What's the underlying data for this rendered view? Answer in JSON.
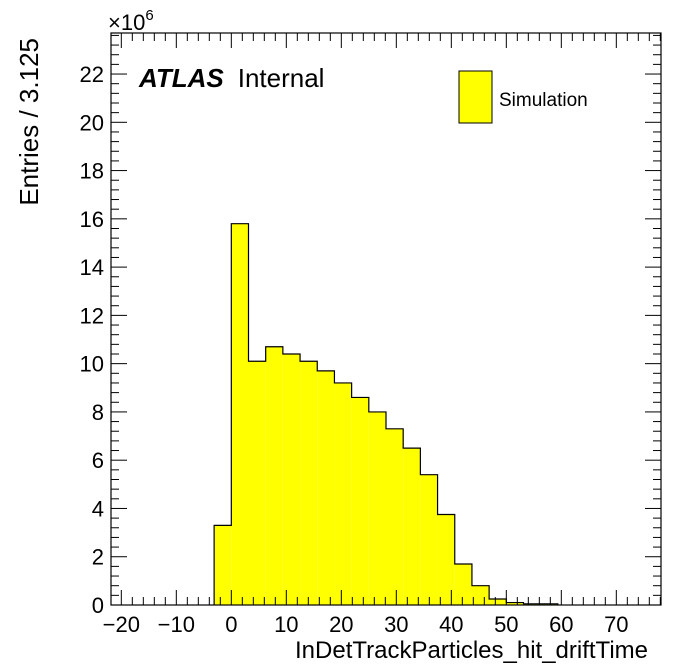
{
  "chart_data": {
    "type": "bar",
    "xlabel": "InDetTrackParticles_hit_driftTime",
    "ylabel": "Entries / 3.125",
    "y_multiplier_base": "×10",
    "y_multiplier_exp": "6",
    "xlim": [
      -21.875,
      78.125
    ],
    "ylim": [
      0,
      23.7
    ],
    "x_ticks": [
      -20,
      -10,
      0,
      10,
      20,
      30,
      40,
      50,
      60,
      70
    ],
    "x_tick_labels": [
      "−20",
      "−10",
      "0",
      "10",
      "20",
      "30",
      "40",
      "50",
      "60",
      "70"
    ],
    "y_ticks": [
      0,
      2,
      4,
      6,
      8,
      10,
      12,
      14,
      16,
      18,
      20,
      22
    ],
    "y_tick_labels": [
      "0",
      "2",
      "4",
      "6",
      "8",
      "10",
      "12",
      "14",
      "16",
      "18",
      "20",
      "22"
    ],
    "bin_width": 3.125,
    "bin_edges": [
      -3.125,
      0,
      3.125,
      6.25,
      9.375,
      12.5,
      15.625,
      18.75,
      21.875,
      25,
      28.125,
      31.25,
      34.375,
      37.5,
      40.625,
      43.75,
      46.875,
      50,
      53.125,
      56.25,
      59.375
    ],
    "values": [
      3.3,
      15.8,
      10.1,
      10.7,
      10.4,
      10.1,
      9.7,
      9.2,
      8.6,
      8.0,
      7.3,
      6.5,
      5.4,
      3.75,
      1.7,
      0.8,
      0.25,
      0.1,
      0.05,
      0.05
    ],
    "series": [
      {
        "name": "Simulation",
        "color": "#ffff00"
      }
    ],
    "legend_position": "top-right",
    "grid": false
  },
  "atlas_label": {
    "bold": "ATLAS",
    "text": "Internal"
  }
}
